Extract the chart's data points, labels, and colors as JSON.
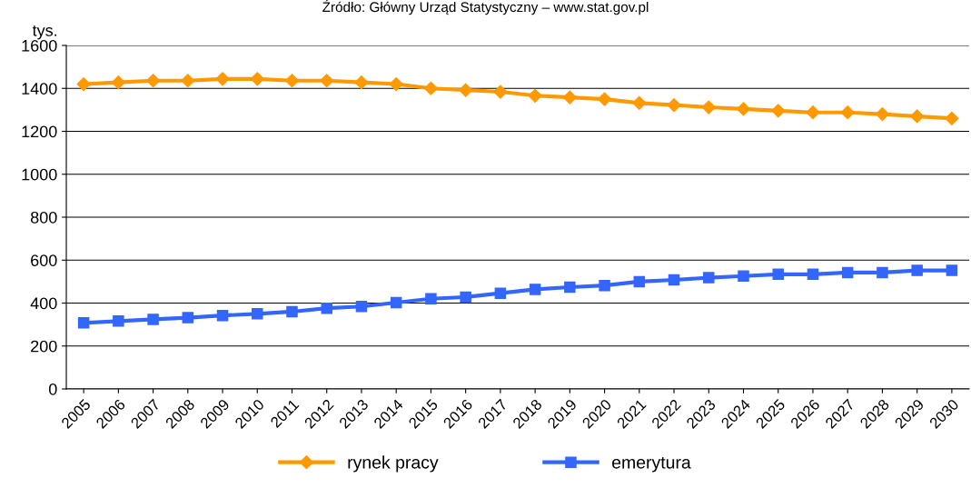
{
  "chart_data": {
    "type": "line",
    "annotations": [
      "Źródło: Główny Urząd Statystyczny – www.stat.gov.pl"
    ],
    "ylabel": "tys.",
    "categories": [
      "2005",
      "2006",
      "2007",
      "2008",
      "2009",
      "2010",
      "2011",
      "2012",
      "2013",
      "2014",
      "2015",
      "2016",
      "2017",
      "2018",
      "2019",
      "2020",
      "2021",
      "2022",
      "2023",
      "2024",
      "2025",
      "2026",
      "2027",
      "2028",
      "2029",
      "2030"
    ],
    "series": [
      {
        "name": "rynek pracy",
        "color": "#ff9900",
        "marker": "diamond",
        "values": [
          1420,
          1428,
          1436,
          1436,
          1444,
          1444,
          1436,
          1436,
          1428,
          1420,
          1400,
          1392,
          1384,
          1366,
          1358,
          1350,
          1332,
          1322,
          1312,
          1304,
          1296,
          1288,
          1288,
          1280,
          1270,
          1260
        ]
      },
      {
        "name": "emerytura",
        "color": "#3366ff",
        "marker": "square",
        "values": [
          308,
          316,
          324,
          332,
          342,
          350,
          360,
          376,
          384,
          402,
          420,
          428,
          446,
          464,
          474,
          482,
          500,
          508,
          518,
          526,
          534,
          534,
          542,
          542,
          552,
          552
        ]
      }
    ],
    "ylim": [
      0,
      1600
    ],
    "yticks": [
      0,
      200,
      400,
      600,
      800,
      1000,
      1200,
      1400,
      1600
    ],
    "grid": "y",
    "legend": "bottom",
    "line_style": "solid"
  }
}
